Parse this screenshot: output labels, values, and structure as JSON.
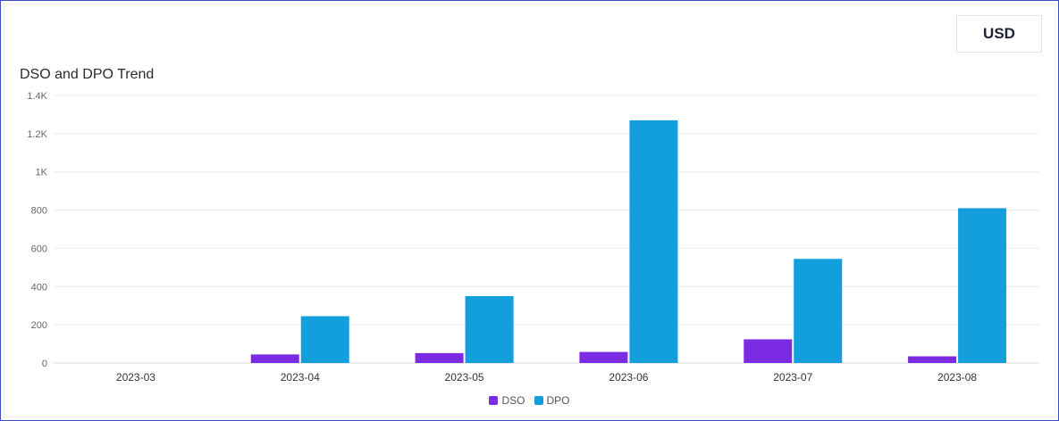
{
  "currency": {
    "label": "USD"
  },
  "chart_data": {
    "type": "bar",
    "title": "DSO and DPO Trend",
    "categories": [
      "2023-03",
      "2023-04",
      "2023-05",
      "2023-06",
      "2023-07",
      "2023-08"
    ],
    "series": [
      {
        "name": "DSO",
        "color": "#7b2be2",
        "values": [
          0,
          45,
          52,
          58,
          124,
          35
        ]
      },
      {
        "name": "DPO",
        "color": "#129fdb",
        "values": [
          0,
          245,
          350,
          1270,
          545,
          810
        ]
      }
    ],
    "ylim": [
      0,
      1400
    ],
    "yticks": [
      0,
      200,
      400,
      600,
      800,
      1000,
      1200,
      1400
    ],
    "ytick_labels": [
      "0",
      "200",
      "400",
      "600",
      "800",
      "1K",
      "1.2K",
      "1.4K"
    ],
    "grid": true,
    "legend": "bottom-center",
    "xlabel": "",
    "ylabel": ""
  }
}
